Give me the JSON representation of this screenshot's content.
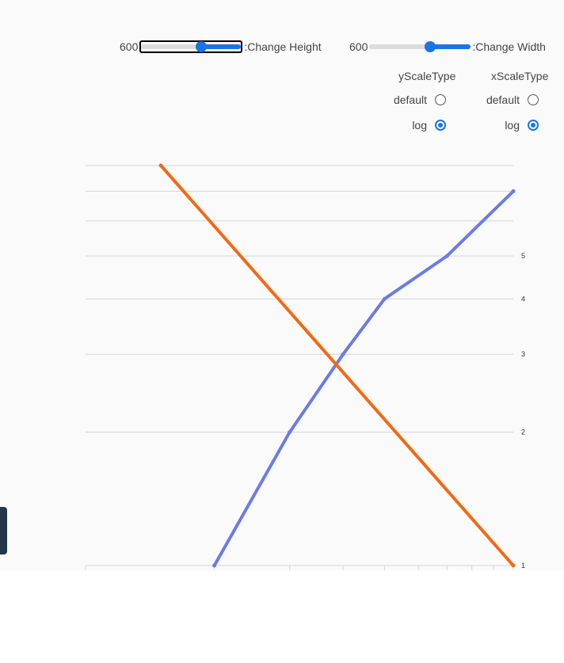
{
  "controls": {
    "height": {
      "value": 600,
      "value_label": "600",
      "label": ":Change Height",
      "min": 0,
      "max": 1000
    },
    "width": {
      "value": 600,
      "value_label": "600",
      "label": ":Change Width",
      "min": 0,
      "max": 1000
    }
  },
  "y_scale": {
    "title": "yScaleType",
    "options": [
      {
        "label": "default",
        "checked": false
      },
      {
        "label": "log",
        "checked": true
      }
    ]
  },
  "x_scale": {
    "title": "xScaleType",
    "options": [
      {
        "label": "default",
        "checked": false
      },
      {
        "label": "log",
        "checked": true
      }
    ]
  },
  "colors": {
    "series_a": "#6b7be8",
    "series_b": "#f06a14",
    "grid": "#d6d6d6",
    "accent": "#1a73e8"
  },
  "chart_data": {
    "type": "line",
    "x_scale": "log",
    "y_scale": "log",
    "xlim": [
      1,
      10
    ],
    "ylim": [
      1,
      8
    ],
    "y_ticks": [
      1,
      2,
      3,
      4,
      5,
      6,
      7,
      8
    ],
    "y_tick_labels": [
      "1",
      "2",
      "3",
      "4",
      "5",
      "",
      "",
      ""
    ],
    "x_ticks": [
      1,
      2,
      3,
      4,
      5,
      6,
      7,
      8,
      9,
      10
    ],
    "grid": true,
    "series": [
      {
        "x": [
          2,
          3,
          4,
          5,
          7,
          10
        ],
        "y": [
          1,
          2,
          3,
          4,
          5,
          7
        ]
      },
      {
        "x": [
          1.5,
          10
        ],
        "y": [
          8,
          1
        ]
      }
    ]
  }
}
